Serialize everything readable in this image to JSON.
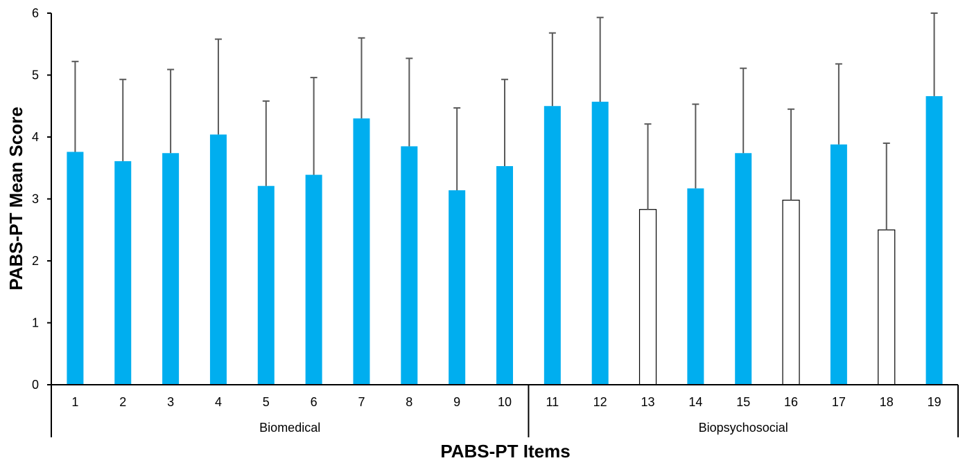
{
  "chart_data": {
    "type": "bar",
    "title": "",
    "xlabel": "PABS-PT Items",
    "ylabel": "PABS-PT Mean Score",
    "ylim": [
      0,
      6
    ],
    "yticks": [
      0,
      1,
      2,
      3,
      4,
      5,
      6
    ],
    "grid": false,
    "legend": "none",
    "categories": [
      "1",
      "2",
      "3",
      "4",
      "5",
      "6",
      "7",
      "8",
      "9",
      "10",
      "11",
      "12",
      "13",
      "14",
      "15",
      "16",
      "17",
      "18",
      "19"
    ],
    "values": [
      3.76,
      3.61,
      3.74,
      4.04,
      3.21,
      3.39,
      4.3,
      3.85,
      3.14,
      3.53,
      4.5,
      4.57,
      2.83,
      3.17,
      3.74,
      2.98,
      3.88,
      2.5,
      4.66
    ],
    "error_upper": [
      1.46,
      1.32,
      1.35,
      1.54,
      1.37,
      1.57,
      1.3,
      1.42,
      1.33,
      1.4,
      1.18,
      1.36,
      1.38,
      1.36,
      1.37,
      1.47,
      1.3,
      1.4,
      1.34
    ],
    "filled": [
      true,
      true,
      true,
      true,
      true,
      true,
      true,
      true,
      true,
      true,
      true,
      true,
      false,
      true,
      true,
      false,
      true,
      false,
      true
    ],
    "groups": [
      {
        "label": "Biomedical",
        "categories": [
          "1",
          "2",
          "3",
          "4",
          "5",
          "6",
          "7",
          "8",
          "9",
          "10"
        ]
      },
      {
        "label": "Biopsychosocial",
        "categories": [
          "11",
          "12",
          "13",
          "14",
          "15",
          "16",
          "17",
          "18",
          "19"
        ]
      }
    ],
    "colors": {
      "filled": "#00AEEF",
      "hollow": "#FFFFFF",
      "outline": "#000000",
      "error_bar": "#595959",
      "axis": "#000000"
    }
  }
}
